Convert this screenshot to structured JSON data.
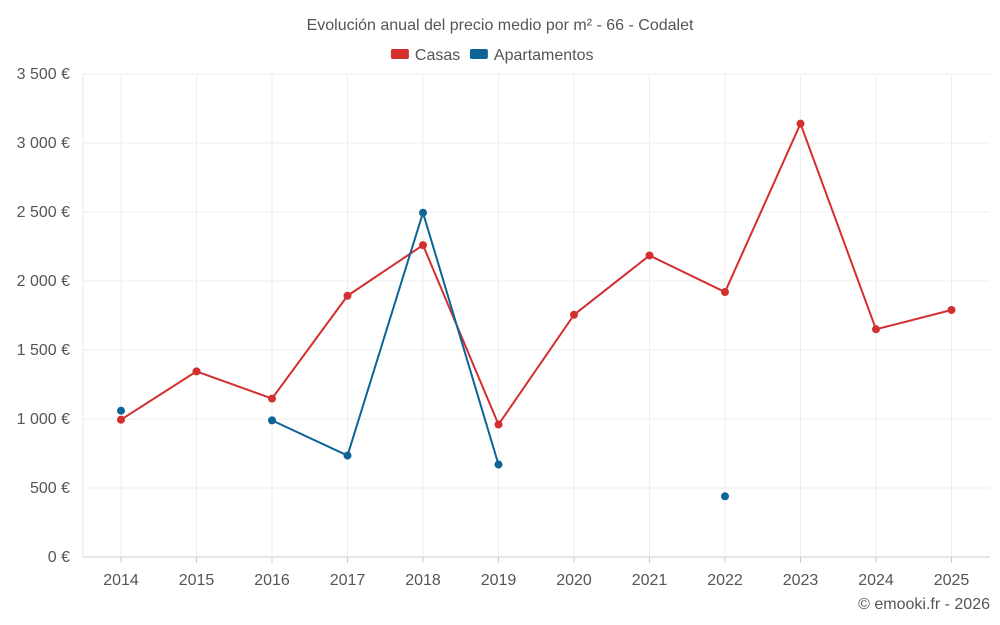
{
  "chart_data": {
    "type": "line",
    "title": "Evolución anual del precio medio por m² - 66 - Codalet",
    "categories": [
      "2014",
      "2015",
      "2016",
      "2017",
      "2018",
      "2019",
      "2020",
      "2021",
      "2022",
      "2023",
      "2024",
      "2025"
    ],
    "ylim": [
      0,
      3500
    ],
    "yticks": [
      0,
      500,
      1000,
      1500,
      2000,
      2500,
      3000,
      3500
    ],
    "ytick_labels": [
      "0 €",
      "500 €",
      "1 000 €",
      "1 500 €",
      "2 000 €",
      "2 500 €",
      "3 000 €",
      "3 500 €"
    ],
    "grid": true,
    "legend_position": "top-center",
    "series": [
      {
        "name": "Casas",
        "color": "#d32f2f",
        "values": [
          995,
          1345,
          1148,
          1893,
          2260,
          960,
          1755,
          2185,
          1920,
          3140,
          1650,
          1790
        ]
      },
      {
        "name": "Apartamentos",
        "color": "#0e6496",
        "values": [
          1060,
          null,
          990,
          735,
          2495,
          670,
          null,
          null,
          440,
          null,
          null,
          null
        ]
      }
    ]
  },
  "footer": {
    "credit": "© emooki.fr - 2026"
  }
}
